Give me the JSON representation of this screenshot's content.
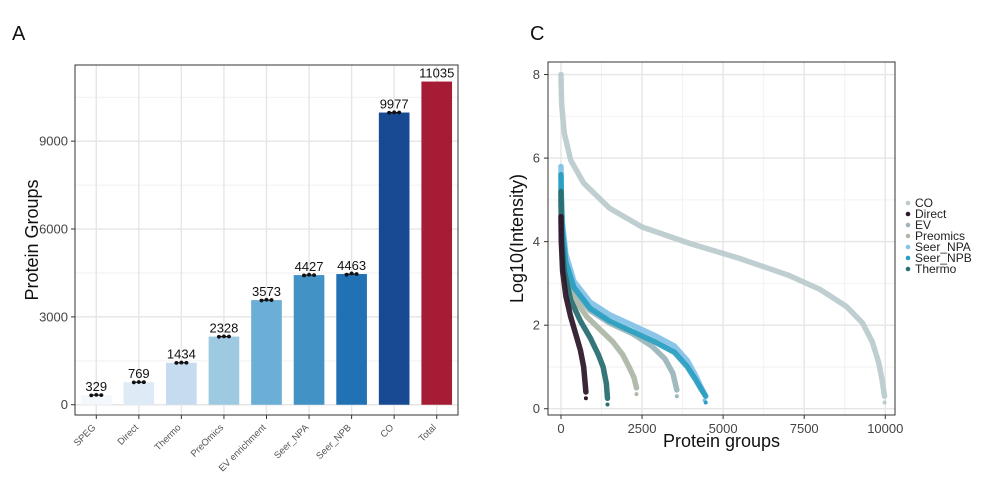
{
  "chart_data": [
    {
      "panel": "A",
      "type": "bar",
      "ylabel": "Protein Groups",
      "xlabel": "",
      "ylim": [
        -350,
        11600
      ],
      "yticks": [
        0,
        3000,
        6000,
        9000
      ],
      "grid": true,
      "categories": [
        "SPEG",
        "Direct",
        "Thermo",
        "PreOmics",
        "EV enrichment",
        "Seer_NPA",
        "Seer_NPB",
        "CO",
        "Total"
      ],
      "values": [
        329,
        769,
        1434,
        2328,
        3573,
        4427,
        4463,
        9977,
        11035
      ],
      "colors": [
        "#f4f8fc",
        "#deebf7",
        "#c6dbef",
        "#9ecae1",
        "#6baed6",
        "#4292c6",
        "#2171b5",
        "#174a93",
        "#a51c34"
      ],
      "replicates": [
        [
          320,
          338,
          329
        ],
        [
          762,
          775,
          770
        ],
        [
          1428,
          1440,
          1434
        ],
        [
          2320,
          2335,
          2329
        ],
        [
          3560,
          3585,
          3574
        ],
        [
          4415,
          4440,
          4426
        ],
        [
          4440,
          4485,
          4464
        ],
        [
          9970,
          9984,
          9977
        ],
        []
      ]
    },
    {
      "panel": "C",
      "type": "scatter",
      "xlabel": "Protein groups",
      "ylabel": "Log10(Intensity)",
      "xlim": [
        -400,
        10300
      ],
      "ylim": [
        -0.15,
        8.3
      ],
      "xticks": [
        0,
        2500,
        5000,
        7500,
        10000
      ],
      "yticks": [
        0,
        2,
        4,
        6,
        8
      ],
      "grid": true,
      "legend_position": "right",
      "series": [
        {
          "name": "Thermo",
          "color": "#2a6f72",
          "n": 1434,
          "first": 5.2,
          "points": [
            [
              0,
              5.2
            ],
            [
              8,
              4.6
            ],
            [
              30,
              4.0
            ],
            [
              100,
              3.3
            ],
            [
              300,
              2.6
            ],
            [
              600,
              2.1
            ],
            [
              900,
              1.7
            ],
            [
              1150,
              1.3
            ],
            [
              1300,
              1.0
            ],
            [
              1400,
              0.6
            ],
            [
              1434,
              0.25
            ]
          ]
        },
        {
          "name": "Seer_NPB",
          "color": "#2b9fc2",
          "n": 4463,
          "first": 5.6,
          "points": [
            [
              0,
              5.6
            ],
            [
              10,
              5.0
            ],
            [
              40,
              4.3
            ],
            [
              150,
              3.5
            ],
            [
              400,
              2.9
            ],
            [
              900,
              2.4
            ],
            [
              1500,
              2.1
            ],
            [
              2200,
              1.85
            ],
            [
              2900,
              1.6
            ],
            [
              3500,
              1.35
            ],
            [
              3900,
              1.0
            ],
            [
              4150,
              0.7
            ],
            [
              4300,
              0.5
            ],
            [
              4463,
              0.3
            ]
          ]
        },
        {
          "name": "Seer_NPA",
          "color": "#85c3e8",
          "n": 4427,
          "first": 5.8,
          "points": [
            [
              0,
              5.8
            ],
            [
              10,
              5.2
            ],
            [
              40,
              4.5
            ],
            [
              150,
              3.7
            ],
            [
              400,
              3.05
            ],
            [
              900,
              2.55
            ],
            [
              1500,
              2.25
            ],
            [
              2200,
              2.0
            ],
            [
              2900,
              1.75
            ],
            [
              3500,
              1.5
            ],
            [
              3900,
              1.15
            ],
            [
              4150,
              0.8
            ],
            [
              4300,
              0.55
            ],
            [
              4427,
              0.35
            ]
          ]
        },
        {
          "name": "Preomics",
          "color": "#aeb8a8",
          "n": 2328,
          "first": 5.0,
          "points": [
            [
              0,
              5.0
            ],
            [
              10,
              4.5
            ],
            [
              40,
              3.9
            ],
            [
              150,
              3.2
            ],
            [
              400,
              2.65
            ],
            [
              800,
              2.2
            ],
            [
              1200,
              1.9
            ],
            [
              1600,
              1.6
            ],
            [
              1900,
              1.3
            ],
            [
              2100,
              1.0
            ],
            [
              2250,
              0.75
            ],
            [
              2328,
              0.5
            ]
          ]
        },
        {
          "name": "EV",
          "color": "#9cb6ba",
          "n": 3573,
          "first": 5.3,
          "points": [
            [
              0,
              5.3
            ],
            [
              10,
              4.7
            ],
            [
              40,
              4.1
            ],
            [
              150,
              3.4
            ],
            [
              400,
              2.8
            ],
            [
              900,
              2.35
            ],
            [
              1500,
              2.05
            ],
            [
              2200,
              1.8
            ],
            [
              2800,
              1.5
            ],
            [
              3200,
              1.2
            ],
            [
              3450,
              0.85
            ],
            [
              3573,
              0.45
            ]
          ]
        },
        {
          "name": "Direct",
          "color": "#2e1a2c",
          "n": 769,
          "first": 4.6,
          "points": [
            [
              0,
              4.6
            ],
            [
              10,
              4.0
            ],
            [
              50,
              3.3
            ],
            [
              150,
              2.7
            ],
            [
              300,
              2.2
            ],
            [
              450,
              1.8
            ],
            [
              600,
              1.4
            ],
            [
              700,
              1.0
            ],
            [
              769,
              0.4
            ]
          ]
        },
        {
          "name": "CO",
          "color": "#bccbce",
          "n": 9977,
          "first": 8.0,
          "points": [
            [
              0,
              8.0
            ],
            [
              20,
              7.3
            ],
            [
              100,
              6.6
            ],
            [
              300,
              5.95
            ],
            [
              700,
              5.4
            ],
            [
              1500,
              4.8
            ],
            [
              2500,
              4.35
            ],
            [
              4000,
              3.95
            ],
            [
              5500,
              3.6
            ],
            [
              7000,
              3.2
            ],
            [
              8000,
              2.85
            ],
            [
              8800,
              2.45
            ],
            [
              9300,
              2.05
            ],
            [
              9600,
              1.6
            ],
            [
              9800,
              1.1
            ],
            [
              9900,
              0.7
            ],
            [
              9977,
              0.3
            ]
          ]
        }
      ],
      "legend": [
        "CO",
        "Direct",
        "EV",
        "Preomics",
        "Seer_NPA",
        "Seer_NPB",
        "Thermo"
      ]
    }
  ],
  "panel_labels": {
    "a": "A",
    "c": "C"
  }
}
